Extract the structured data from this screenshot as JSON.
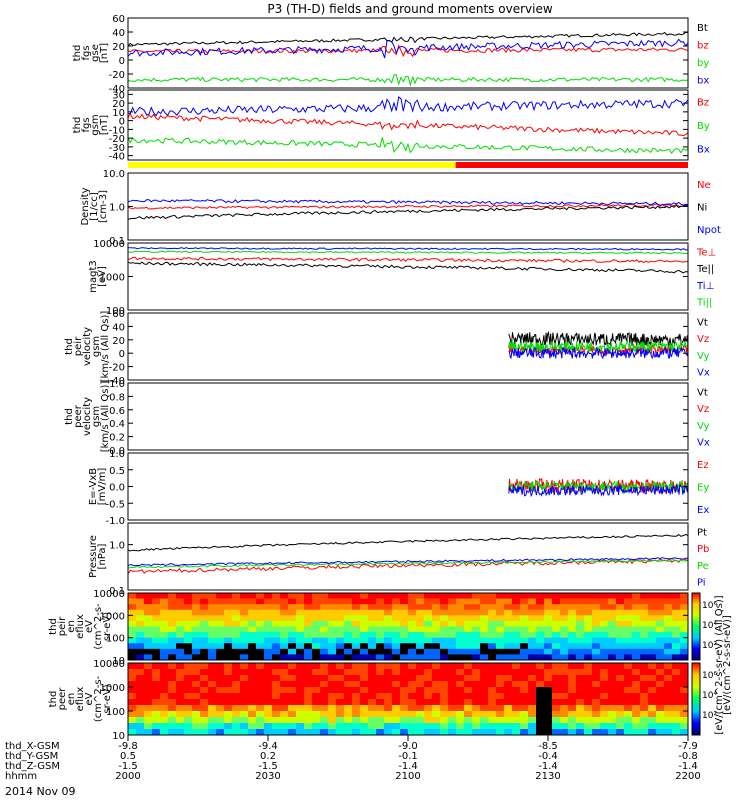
{
  "title": "P3 (TH-D) fields and ground moments overview",
  "date": "2014 Nov 09",
  "colors": {
    "black": "#000000",
    "red": "#ff0000",
    "green": "#00dd00",
    "blue": "#0000ff",
    "yellow": "#ffff00"
  },
  "x_ticks": [
    {
      "X": "-9.8",
      "Y": "0.5",
      "Z": "-1.5",
      "hhmm": "2000"
    },
    {
      "X": "-9.4",
      "Y": "0.2",
      "Z": "-1.5",
      "hhmm": "2030"
    },
    {
      "X": "-9.0",
      "Y": "-0.1",
      "Z": "-1.4",
      "hhmm": "2100"
    },
    {
      "X": "-8.5",
      "Y": "-0.4",
      "Z": "-1.4",
      "hhmm": "2130"
    },
    {
      "X": "-7.9",
      "Y": "-0.8",
      "Z": "-1.4",
      "hhmm": "2200"
    }
  ],
  "x_row_labels": [
    "thd_X-GSM",
    "thd_Y-GSM",
    "thd_Z-GSM",
    "hhmm"
  ],
  "mode_bar": {
    "segments": [
      {
        "start": 0,
        "end": 0.585,
        "color": "yellow"
      },
      {
        "start": 0.585,
        "end": 1,
        "color": "red"
      }
    ]
  },
  "chart_data": [
    {
      "type": "line",
      "id": "fgs",
      "ylabel": [
        "thd",
        "fgs",
        "gse",
        "[nT]"
      ],
      "ylim": [
        -40,
        60
      ],
      "ticks": [
        "60",
        "40",
        "20",
        "0",
        "-20",
        "-40"
      ],
      "tick_values": [
        60,
        40,
        20,
        0,
        -20,
        -40
      ],
      "series": [
        {
          "name": "Bt",
          "color": "black",
          "base": 22,
          "end": 38,
          "noise": 2
        },
        {
          "name": "bz",
          "color": "red",
          "base": 12,
          "end": 15,
          "noise": 3
        },
        {
          "name": "by",
          "color": "green",
          "base": -28,
          "end": -28,
          "noise": 3
        },
        {
          "name": "bx",
          "color": "blue",
          "base": 10,
          "end": 25,
          "noise": 5
        }
      ],
      "legend": [
        {
          "text": "Bt",
          "color": "black"
        },
        {
          "text": "bz",
          "color": "red"
        },
        {
          "text": "by",
          "color": "green"
        },
        {
          "text": "bx",
          "color": "blue"
        }
      ]
    },
    {
      "type": "line",
      "id": "fgs_gsm",
      "ylabel": [
        "thd",
        "fgs",
        "gsm",
        "[nT]"
      ],
      "ylim": [
        -45,
        35
      ],
      "ticks": [
        "30",
        "20",
        "10",
        "0",
        "-10",
        "-20",
        "-30",
        "-40"
      ],
      "tick_values": [
        30,
        20,
        10,
        0,
        -10,
        -20,
        -30,
        -40
      ],
      "series": [
        {
          "name": "Bz",
          "color": "red",
          "base": 5,
          "end": -15,
          "noise": 3
        },
        {
          "name": "By",
          "color": "green",
          "base": -22,
          "end": -35,
          "noise": 3
        },
        {
          "name": "Bx",
          "color": "blue",
          "base": 10,
          "end": 20,
          "noise": 5
        }
      ],
      "legend": [
        {
          "text": "Bz",
          "color": "red"
        },
        {
          "text": "By",
          "color": "green"
        },
        {
          "text": "Bx",
          "color": "blue"
        }
      ]
    },
    {
      "type": "line",
      "id": "density",
      "log": true,
      "ylabel": [
        "Density",
        "[1/cc]",
        "[cm-3]"
      ],
      "ylim": [
        0.1,
        10
      ],
      "ticks": [
        "10.0",
        "1.0",
        "0.1"
      ],
      "tick_values": [
        10,
        1,
        0.1
      ],
      "series": [
        {
          "name": "Ne",
          "color": "red",
          "base": 0.9,
          "end": 1.1,
          "noise": 0.08
        },
        {
          "name": "Ni",
          "color": "black",
          "base": 0.45,
          "end": 1.0,
          "noise": 0.1
        },
        {
          "name": "Npot",
          "color": "blue",
          "base": 1.5,
          "end": 1.2,
          "noise": 0.1
        }
      ],
      "legend": [
        {
          "text": "Ne",
          "color": "red"
        },
        {
          "text": "Ni",
          "color": "black"
        },
        {
          "text": "Npot",
          "color": "blue"
        }
      ]
    },
    {
      "type": "line",
      "id": "temp",
      "log": true,
      "ylabel": [
        "magt3",
        "[eV]"
      ],
      "ylim": [
        100,
        10000
      ],
      "ticks": [
        "10000",
        "1000",
        "100"
      ],
      "tick_values": [
        10000,
        1000,
        100
      ],
      "series": [
        {
          "name": "Te⊥",
          "color": "red",
          "base": 3500,
          "end": 2800,
          "noise": 0.1
        },
        {
          "name": "Te||",
          "color": "black",
          "base": 2500,
          "end": 1400,
          "noise": 0.1
        },
        {
          "name": "Ti⊥",
          "color": "blue",
          "base": 7000,
          "end": 6500,
          "noise": 0.05
        },
        {
          "name": "Ti||",
          "color": "green",
          "base": 5500,
          "end": 5000,
          "noise": 0.05
        }
      ],
      "legend": [
        {
          "text": "Te⊥",
          "color": "red"
        },
        {
          "text": "Te||",
          "color": "black"
        },
        {
          "text": "Ti⊥",
          "color": "blue"
        },
        {
          "text": "Ti||",
          "color": "green"
        }
      ]
    },
    {
      "type": "line",
      "id": "peir",
      "ylabel": [
        "thd",
        "peir",
        "velocity",
        "gsm",
        "[km/s (All Qs)]"
      ],
      "ylim": [
        -40,
        60
      ],
      "ticks": [
        "60",
        "40",
        "20",
        "0",
        "-20",
        "-40"
      ],
      "tick_values": [
        60,
        40,
        20,
        0,
        -20,
        -40
      ],
      "data_start": 0.68,
      "series": [
        {
          "name": "Vt",
          "color": "black",
          "base": 25,
          "end": 20,
          "noise": 10
        },
        {
          "name": "Vz",
          "color": "red",
          "base": 5,
          "end": 5,
          "noise": 6
        },
        {
          "name": "Vy",
          "color": "green",
          "base": 10,
          "end": 10,
          "noise": 8
        },
        {
          "name": "Vx",
          "color": "blue",
          "base": 0,
          "end": 0,
          "noise": 8
        }
      ],
      "legend": [
        {
          "text": "Vt",
          "color": "black"
        },
        {
          "text": "Vz",
          "color": "red"
        },
        {
          "text": "Vy",
          "color": "green"
        },
        {
          "text": "Vx",
          "color": "blue"
        }
      ]
    },
    {
      "type": "line",
      "id": "peer",
      "ylabel": [
        "thd",
        "peer",
        "velocity",
        "gsm",
        "[km/s (All Qs)]"
      ],
      "ylim": [
        0,
        1
      ],
      "ticks": [
        "1.0",
        "0.8",
        "0.6",
        "0.4",
        "0.2",
        "0.0"
      ],
      "tick_values": [
        1,
        0.8,
        0.6,
        0.4,
        0.2,
        0
      ],
      "series": [],
      "legend": [
        {
          "text": "Vt",
          "color": "black"
        },
        {
          "text": "Vz",
          "color": "red"
        },
        {
          "text": "Vy",
          "color": "green"
        },
        {
          "text": "Vx",
          "color": "blue"
        }
      ]
    },
    {
      "type": "line",
      "id": "efield",
      "ylabel": [
        "E=-VxB",
        "[mV/m]"
      ],
      "ylim": [
        -1,
        1
      ],
      "ticks": [
        "1.0",
        "0.5",
        "0.0",
        "-0.5",
        "-1.0"
      ],
      "tick_values": [
        1,
        0.5,
        0,
        -0.5,
        -1
      ],
      "data_start": 0.68,
      "series": [
        {
          "name": "Ez",
          "color": "red",
          "base": 0.1,
          "end": 0.0,
          "noise": 0.2
        },
        {
          "name": "Ey",
          "color": "green",
          "base": 0.05,
          "end": 0.0,
          "noise": 0.15
        },
        {
          "name": "Ex",
          "color": "blue",
          "base": -0.2,
          "end": -0.1,
          "noise": 0.15
        }
      ],
      "legend": [
        {
          "text": "Ez",
          "color": "red"
        },
        {
          "text": "Ey",
          "color": "green"
        },
        {
          "text": "Ex",
          "color": "blue"
        }
      ]
    },
    {
      "type": "line",
      "id": "pressure",
      "log": true,
      "ylabel": [
        "Pressure",
        "[nPa]"
      ],
      "ylim": [
        0.1,
        3
      ],
      "ticks": [
        "1.0",
        "0.1"
      ],
      "tick_values": [
        1,
        0.1
      ],
      "series": [
        {
          "name": "Pt",
          "color": "black",
          "base": 0.75,
          "end": 1.6,
          "noise": 0.05
        },
        {
          "name": "Pb",
          "color": "red",
          "base": 0.25,
          "end": 0.45,
          "noise": 0.1
        },
        {
          "name": "Pe",
          "color": "green",
          "base": 0.32,
          "end": 0.45,
          "noise": 0.05
        },
        {
          "name": "Pi",
          "color": "blue",
          "base": 0.35,
          "end": 0.5,
          "noise": 0.05
        }
      ],
      "legend": [
        {
          "text": "Pt",
          "color": "black"
        },
        {
          "text": "Pb",
          "color": "red"
        },
        {
          "text": "Pe",
          "color": "green"
        },
        {
          "text": "Pi",
          "color": "blue"
        }
      ]
    },
    {
      "type": "heatmap",
      "id": "peir_spec",
      "ylabel": [
        "thd",
        "peir",
        "en",
        "eflux",
        "eV",
        "(cm^2-s-",
        "sr-eV)"
      ],
      "ylim": [
        10,
        10000
      ],
      "ticks": [
        "10000",
        "1000",
        "100",
        "10"
      ],
      "tick_values": [
        10000,
        1000,
        100,
        10
      ]
    },
    {
      "type": "heatmap",
      "id": "peer_spec",
      "ylabel": [
        "thd",
        "peer",
        "en",
        "eflux",
        "eV",
        "(cm^2-s-",
        "sr-eV)"
      ],
      "ylim": [
        10,
        10000
      ],
      "ticks": [
        "10000",
        "1000",
        "100",
        "10"
      ],
      "tick_values": [
        10000,
        1000,
        100,
        10
      ]
    }
  ],
  "colorbar": {
    "label": "[eV/(cm^2-s-sr-eV)]",
    "label2": "[eV/(cm^2-s-sr-eV) (All Qs)]",
    "ticks": [
      "10⁶",
      "10⁴",
      "10²",
      "10⁶",
      "10⁴",
      "10²"
    ]
  }
}
